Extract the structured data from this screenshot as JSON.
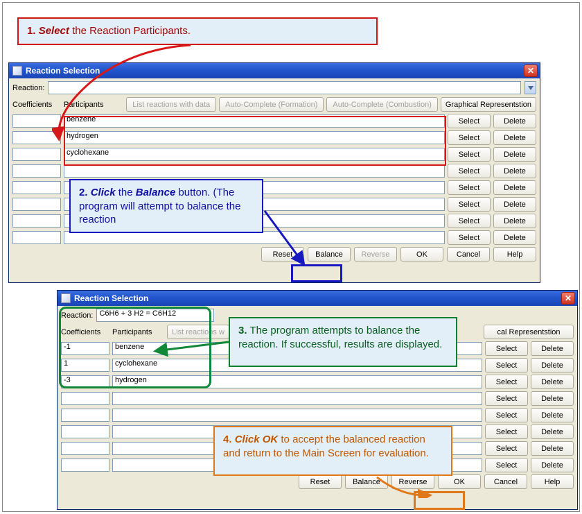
{
  "window1": {
    "title": "Reaction Selection",
    "reaction_label": "Reaction:",
    "reaction_value": "",
    "headers": {
      "coefficients": "Coefficients",
      "participants": "Participants"
    },
    "top_buttons": {
      "list": "List reactions with data",
      "auto_form": "Auto-Complete (Formation)",
      "auto_comb": "Auto-Complete (Combustion)",
      "graph": "Graphical Representstion"
    },
    "rows": [
      {
        "coef": "",
        "part": "benzene"
      },
      {
        "coef": "",
        "part": "hydrogen"
      },
      {
        "coef": "",
        "part": "cyclohexane"
      },
      {
        "coef": "",
        "part": ""
      },
      {
        "coef": "",
        "part": ""
      },
      {
        "coef": "",
        "part": ""
      },
      {
        "coef": "",
        "part": ""
      },
      {
        "coef": "",
        "part": ""
      }
    ],
    "row_btns": {
      "select": "Select",
      "delete": "Delete"
    },
    "bottom": {
      "reset": "Reset",
      "balance": "Balance",
      "reverse": "Reverse",
      "ok": "OK",
      "cancel": "Cancel",
      "help": "Help"
    }
  },
  "window2": {
    "title": "Reaction Selection",
    "reaction_label": "Reaction:",
    "reaction_value": "C6H6 + 3 H2  =  C6H12",
    "headers": {
      "coefficients": "Coefficients",
      "participants": "Participants"
    },
    "top_buttons": {
      "list": "List reactions w",
      "graph": "cal Representstion"
    },
    "rows": [
      {
        "coef": "-1",
        "part": "benzene"
      },
      {
        "coef": "1",
        "part": "cyclohexane"
      },
      {
        "coef": "-3",
        "part": "hydrogen"
      },
      {
        "coef": "",
        "part": ""
      },
      {
        "coef": "",
        "part": ""
      },
      {
        "coef": "",
        "part": ""
      },
      {
        "coef": "",
        "part": ""
      },
      {
        "coef": "",
        "part": ""
      }
    ],
    "row_btns": {
      "select": "Select",
      "delete": "Delete"
    },
    "bottom": {
      "reset": "Reset",
      "balance": "Balance",
      "reverse": "Reverse",
      "ok": "OK",
      "cancel": "Cancel",
      "help": "Help"
    }
  },
  "callouts": {
    "c1": {
      "num": "1.",
      "verb": "Select",
      "rest": " the Reaction Participants."
    },
    "c2": {
      "num": "2.",
      "verb": "Click",
      "mid": " the ",
      "obj": "Balance",
      "rest": " button. (The program will attempt to balance the reaction"
    },
    "c3": {
      "num": "3.",
      "rest": " The program attempts to balance the reaction. If successful, results are displayed."
    },
    "c4": {
      "num": "4.",
      "verb": "Click OK",
      "rest": " to accept the balanced reaction and return to the Main Screen for evaluation."
    }
  },
  "colors": {
    "titlebar_top": "#3a6ee0",
    "titlebar_bottom": "#1a45b8",
    "window_bg": "#ece9d8",
    "input_border": "#7f9db9",
    "callout_bg": "#e2eef8",
    "red": "#d81818",
    "blue": "#1818c0",
    "green": "#108838",
    "orange": "#e07818"
  }
}
